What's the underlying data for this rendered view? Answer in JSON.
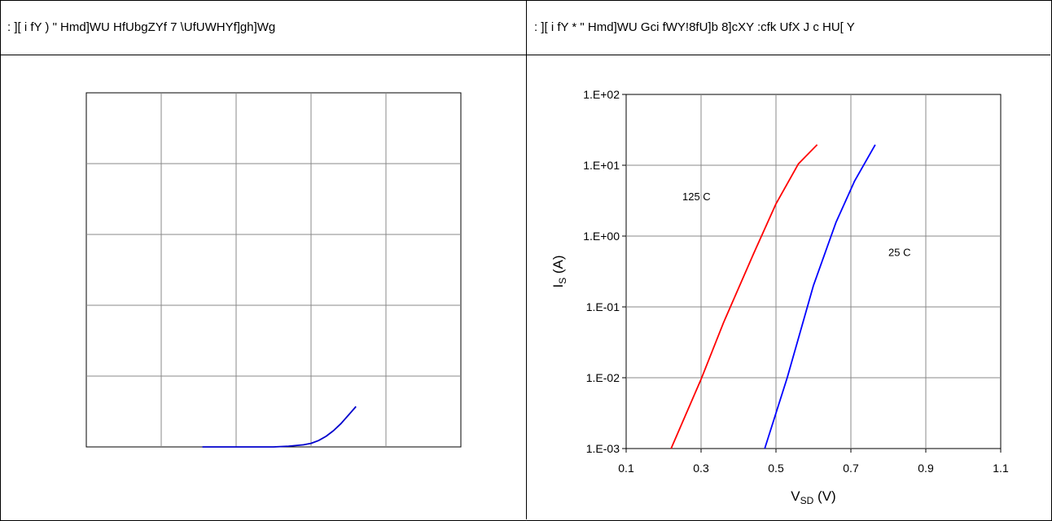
{
  "panels": {
    "left_title": ": ][ i fY ) \" Hmd]WU HfUbgZYf 7 \\UfUWHYf]gh]Wg",
    "right_title": ": ][ i fY * \" Hmd]WU Gci fWY!8fU]b 8]cXY :cfk UfX J c HU[ Y"
  },
  "chart_data": [
    {
      "type": "line",
      "title": "",
      "xlabel": "",
      "ylabel": "",
      "xlim": [
        0,
        5
      ],
      "ylim": [
        0,
        5
      ],
      "grid": true,
      "x_ticks": [],
      "y_ticks": [],
      "series": [
        {
          "color": "#0000cc",
          "x": [
            1.55,
            2.0,
            2.5,
            2.7,
            2.9,
            3.0,
            3.1,
            3.2,
            3.3,
            3.4,
            3.5,
            3.6
          ],
          "y": [
            0.0,
            0.0,
            0.0,
            0.01,
            0.03,
            0.05,
            0.09,
            0.15,
            0.23,
            0.33,
            0.45,
            0.57
          ]
        }
      ]
    },
    {
      "type": "line",
      "title": "",
      "xlabel": "V",
      "xlabel_sub": "SD",
      "xlabel_unit": " (V)",
      "ylabel": "I",
      "ylabel_sub": "S",
      "ylabel_unit": " (A)",
      "xlim": [
        0.1,
        1.1
      ],
      "ylim": [
        0.001,
        100
      ],
      "yscale": "log",
      "grid": true,
      "x_ticks": [
        "0.1",
        "0.3",
        "0.5",
        "0.7",
        "0.9",
        "1.1"
      ],
      "x_tick_values": [
        0.1,
        0.3,
        0.5,
        0.7,
        0.9,
        1.1
      ],
      "y_ticks": [
        "1.E-03",
        "1.E-02",
        "1.E-01",
        "1.E+00",
        "1.E+01",
        "1.E+02"
      ],
      "y_tick_values": [
        0.001,
        0.01,
        0.1,
        1,
        10,
        100
      ],
      "series": [
        {
          "color": "#ff0000",
          "x": [
            0.22,
            0.3,
            0.36,
            0.44,
            0.5,
            0.56,
            0.61
          ],
          "y": [
            0.001,
            0.0095,
            0.06,
            0.56,
            2.85,
            10.5,
            19.5
          ]
        },
        {
          "color": "#0000ff",
          "x": [
            0.47,
            0.53,
            0.6,
            0.66,
            0.71,
            0.765
          ],
          "y": [
            0.001,
            0.01,
            0.2,
            1.55,
            6.0,
            19.5
          ]
        }
      ],
      "annotations": [
        {
          "text": "125   C",
          "x": 0.25,
          "y": 3.2
        },
        {
          "text": "25   C",
          "x": 0.8,
          "y": 0.52
        }
      ]
    }
  ]
}
